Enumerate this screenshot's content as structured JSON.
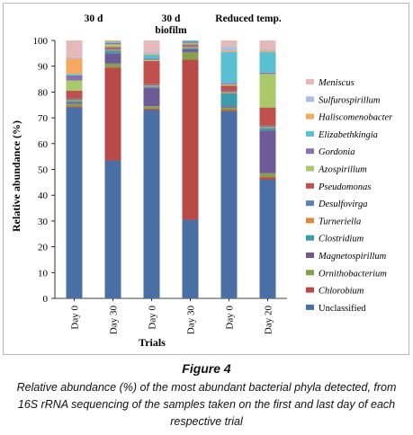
{
  "figure": {
    "title": "Figure 4",
    "caption": "Relative abundance (%) of the most abundant bacterial phyla detected, from 16S rRNA sequencing of the samples taken on the first and last day of each respective trial"
  },
  "chart_data": {
    "type": "bar",
    "stacked": true,
    "title": "",
    "xlabel": "Trials",
    "ylabel": "Relative abundance (%)",
    "ylim": [
      0,
      100
    ],
    "yticks": [
      0,
      10,
      20,
      30,
      40,
      50,
      60,
      70,
      80,
      90,
      100
    ],
    "categories": [
      "Day 0",
      "Day 30",
      "Day 0",
      "Day 30",
      "Day 0",
      "Day 20"
    ],
    "group_labels": [
      {
        "lines": [
          "30 d"
        ],
        "bars": [
          0,
          1
        ]
      },
      {
        "lines": [
          "30 d",
          "biofilm"
        ],
        "bars": [
          2,
          3
        ]
      },
      {
        "lines": [
          "Reduced temp."
        ],
        "bars": [
          4,
          5
        ]
      }
    ],
    "legend_position": "right",
    "series": [
      {
        "name": "Unclassified",
        "italic": false,
        "color": "#4a6fa5",
        "values": [
          74,
          53.5,
          73,
          30.5,
          72.5,
          46
        ]
      },
      {
        "name": "Chlorobium",
        "italic": true,
        "color": "#b94a48",
        "values": [
          0.5,
          36,
          0.5,
          62,
          0.5,
          1
        ]
      },
      {
        "name": "Ornithobacterium",
        "italic": true,
        "color": "#86a04c",
        "values": [
          1,
          1.5,
          1,
          3,
          1,
          1.5
        ]
      },
      {
        "name": "Magnetospirillum",
        "italic": true,
        "color": "#6f5a98",
        "values": [
          0.5,
          4,
          7,
          1,
          0.5,
          16.5
        ]
      },
      {
        "name": "Clostridium",
        "italic": true,
        "color": "#3e9bad",
        "values": [
          0.5,
          1,
          0.5,
          0.5,
          5,
          1
        ]
      },
      {
        "name": "Turneriella",
        "italic": true,
        "color": "#e0893c",
        "values": [
          0.5,
          0.5,
          0.5,
          0.5,
          0.5,
          0.5
        ]
      },
      {
        "name": "Desulfovirga",
        "italic": true,
        "color": "#5b82be",
        "values": [
          0.5,
          0.5,
          0.5,
          0.5,
          0.5,
          0.5
        ]
      },
      {
        "name": "Pseudomonas",
        "italic": true,
        "color": "#c0504d",
        "values": [
          3,
          0.5,
          9,
          0.5,
          2,
          7
        ]
      },
      {
        "name": "Azospirillum",
        "italic": true,
        "color": "#a9c96b",
        "values": [
          4,
          1,
          0.5,
          0.5,
          0.5,
          13
        ]
      },
      {
        "name": "Gordonia",
        "italic": true,
        "color": "#8a72b0",
        "values": [
          2,
          0.5,
          0.5,
          0.5,
          0.5,
          0.5
        ]
      },
      {
        "name": "Elizabethkingia",
        "italic": true,
        "color": "#5bbfd2",
        "values": [
          0.5,
          0.5,
          1.5,
          0.5,
          12,
          8
        ]
      },
      {
        "name": "Haliscomenobacter",
        "italic": true,
        "color": "#f5a85f",
        "values": [
          6,
          0.5,
          0.5,
          0.5,
          0.5,
          0.5
        ]
      },
      {
        "name": "Sulfurospirillum",
        "italic": true,
        "color": "#a9bfdf",
        "values": [
          0.5,
          0.5,
          0.5,
          0.5,
          1.5,
          0.5
        ]
      },
      {
        "name": "Meniscus",
        "italic": true,
        "color": "#e5b9b9",
        "values": [
          7.5,
          1.5,
          6,
          1.5,
          2.5,
          3.5
        ]
      }
    ]
  }
}
